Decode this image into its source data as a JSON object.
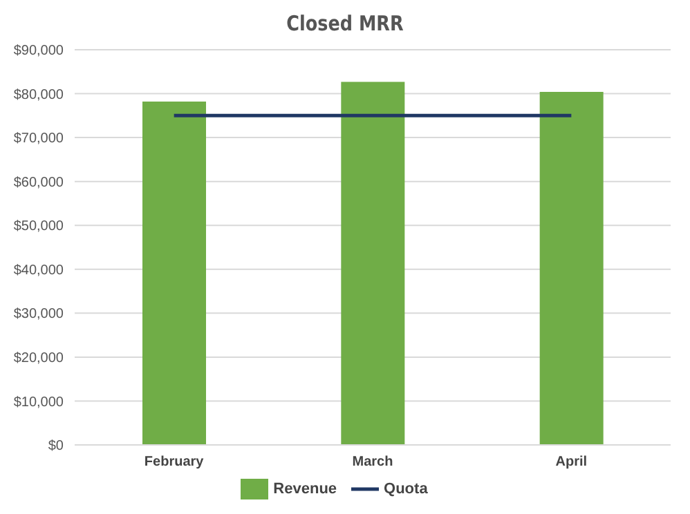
{
  "chart_data": {
    "type": "bar",
    "title": "Closed MRR",
    "categories": [
      "February",
      "March",
      "April"
    ],
    "series": [
      {
        "name": "Revenue",
        "color": "#70ad47",
        "values": [
          78200,
          82700,
          80400
        ]
      },
      {
        "name": "Quota",
        "type": "line",
        "color": "#203864",
        "values": [
          75000,
          75000,
          75000
        ]
      }
    ],
    "ylim": [
      0,
      90000
    ],
    "yticks": [
      {
        "value": 0,
        "label": "$0"
      },
      {
        "value": 10000,
        "label": "$10,000"
      },
      {
        "value": 20000,
        "label": "$20,000"
      },
      {
        "value": 30000,
        "label": "$30,000"
      },
      {
        "value": 40000,
        "label": "$40,000"
      },
      {
        "value": 50000,
        "label": "$50,000"
      },
      {
        "value": 60000,
        "label": "$60,000"
      },
      {
        "value": 70000,
        "label": "$70,000"
      },
      {
        "value": 80000,
        "label": "$80,000"
      },
      {
        "value": 90000,
        "label": "$90,000"
      }
    ],
    "grid": "y",
    "legend": "bottom",
    "marker": "none"
  }
}
